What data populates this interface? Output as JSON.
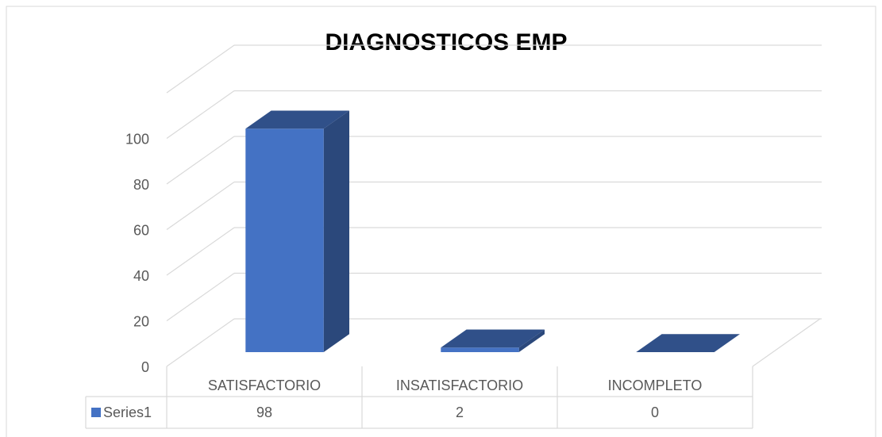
{
  "chart_data": {
    "type": "bar3d",
    "title": "DIAGNOSTICOS EMP",
    "categories": [
      "SATISFACTORIO",
      "INSATISFACTORIO",
      "INCOMPLETO"
    ],
    "series": [
      {
        "name": "Series1",
        "color": "#4472c4",
        "values": [
          98,
          2,
          0
        ]
      }
    ],
    "ylim": [
      0,
      120
    ],
    "yticks": [
      0,
      20,
      40,
      60,
      80,
      100
    ],
    "grid": true,
    "data_table": true
  }
}
